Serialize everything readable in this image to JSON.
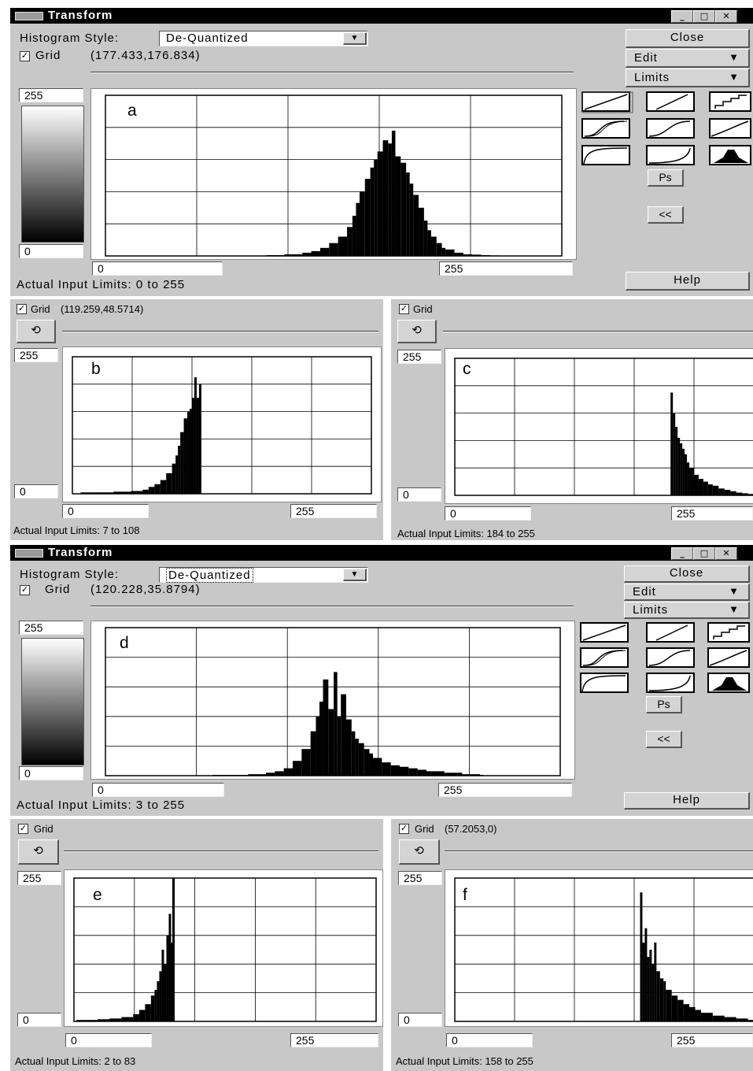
{
  "top_window": {
    "title": "Transform",
    "histogram_style_label": "Histogram Style:",
    "histogram_style_value": "De-Quantized",
    "grid_label": "Grid",
    "grid_checked": true,
    "cursor_readout": "(177.433,176.834)",
    "close_label": "Close",
    "edit_label": "Edit",
    "limits_label": "Limits",
    "ps_label": "Ps",
    "back_label": "<<",
    "help_label": "Help",
    "output_max": "255",
    "output_min": "0",
    "input_min": "0",
    "input_max": "255",
    "panel_letter": "a",
    "actual_limits": "Actual Input Limits: 0 to 255"
  },
  "panel_b": {
    "grid_label": "Grid",
    "cursor_readout": "(119.259,48.5714)",
    "output_max": "255",
    "output_min": "0",
    "input_min": "0",
    "input_max": "255",
    "panel_letter": "b",
    "actual_limits": "Actual Input Limits: 7 to 108"
  },
  "panel_c": {
    "grid_label": "Grid",
    "cursor_readout": "",
    "output_max": "255",
    "output_min": "0",
    "input_min": "0",
    "input_max": "255",
    "panel_letter": "c",
    "actual_limits": "Actual Input Limits: 184 to 255"
  },
  "bottom_window": {
    "title": "Transform",
    "histogram_style_label": "Histogram Style:",
    "histogram_style_value": "De-Quantized",
    "grid_label": "Grid",
    "grid_checked": true,
    "cursor_readout": "(120.228,35.8794)",
    "close_label": "Close",
    "edit_label": "Edit",
    "limits_label": "Limits",
    "ps_label": "Ps",
    "back_label": "<<",
    "help_label": "Help",
    "output_max": "255",
    "output_min": "0",
    "input_min": "0",
    "input_max": "255",
    "panel_letter": "d",
    "actual_limits": "Actual Input Limits: 3 to 255"
  },
  "panel_e": {
    "grid_label": "Grid",
    "cursor_readout": "",
    "output_max": "255",
    "output_min": "0",
    "input_min": "0",
    "input_max": "255",
    "panel_letter": "e",
    "actual_limits": "Actual Input Limits: 2 to 83"
  },
  "panel_f": {
    "grid_label": "Grid",
    "cursor_readout": "(57.2053,0)",
    "output_max": "255",
    "output_min": "0",
    "input_min": "0",
    "input_max": "255",
    "panel_letter": "f",
    "actual_limits": "Actual Input Limits: 158 to 255"
  },
  "icons": {
    "curve_buttons": [
      "linear-curve-icon",
      "steep-linear-curve-icon",
      "staircase-curve-icon",
      "s-curve-double-icon",
      "s-curve-icon",
      "shallow-s-curve-icon",
      "log-curve-icon",
      "exp-curve-icon",
      "histogram-shape-icon"
    ],
    "refresh": "refresh-icon",
    "window_controls": [
      "minimize-icon",
      "maximize-icon",
      "close-icon"
    ]
  },
  "chart_data": [
    {
      "type": "bar",
      "panel": "a",
      "xlim": [
        0,
        255
      ],
      "ylim": [
        0,
        1
      ],
      "x": [
        90,
        100,
        110,
        115,
        120,
        125,
        130,
        135,
        138,
        140,
        142,
        145,
        148,
        150,
        152,
        155,
        158,
        160,
        162,
        165,
        168,
        170,
        172,
        175,
        178,
        180,
        182,
        185,
        188,
        190,
        195,
        200,
        205,
        210,
        215,
        220
      ],
      "values": [
        0.005,
        0.01,
        0.02,
        0.03,
        0.05,
        0.08,
        0.12,
        0.18,
        0.25,
        0.33,
        0.4,
        0.48,
        0.55,
        0.6,
        0.65,
        0.72,
        0.7,
        0.78,
        0.62,
        0.58,
        0.52,
        0.45,
        0.38,
        0.3,
        0.22,
        0.16,
        0.12,
        0.08,
        0.05,
        0.04,
        0.02,
        0.01,
        0.008,
        0.005,
        0.003,
        0.002
      ]
    },
    {
      "type": "bar",
      "panel": "b",
      "xlim": [
        0,
        255
      ],
      "ylim": [
        0,
        1
      ],
      "x": [
        7,
        20,
        35,
        50,
        60,
        65,
        70,
        75,
        80,
        85,
        88,
        90,
        92,
        95,
        98,
        100,
        102,
        104,
        106,
        108
      ],
      "values": [
        0.01,
        0.01,
        0.015,
        0.02,
        0.03,
        0.05,
        0.07,
        0.1,
        0.15,
        0.22,
        0.28,
        0.35,
        0.45,
        0.55,
        0.6,
        0.62,
        0.7,
        0.85,
        0.7,
        0.8
      ]
    },
    {
      "type": "bar",
      "panel": "c",
      "xlim": [
        0,
        255
      ],
      "ylim": [
        0,
        1
      ],
      "x": [
        184,
        186,
        188,
        190,
        192,
        194,
        196,
        198,
        200,
        204,
        208,
        212,
        216,
        220,
        225,
        230,
        235,
        240,
        245,
        250,
        255
      ],
      "values": [
        0.75,
        0.6,
        0.5,
        0.42,
        0.38,
        0.34,
        0.3,
        0.24,
        0.2,
        0.15,
        0.12,
        0.1,
        0.08,
        0.07,
        0.05,
        0.04,
        0.03,
        0.02,
        0.015,
        0.01,
        0.005
      ]
    },
    {
      "type": "bar",
      "panel": "d",
      "xlim": [
        0,
        255
      ],
      "ylim": [
        0,
        1
      ],
      "x": [
        60,
        80,
        90,
        95,
        100,
        105,
        110,
        115,
        118,
        120,
        122,
        125,
        128,
        130,
        132,
        135,
        138,
        140,
        142,
        145,
        148,
        150,
        155,
        160,
        165,
        170,
        175,
        180,
        190,
        200,
        210
      ],
      "values": [
        0.005,
        0.01,
        0.02,
        0.03,
        0.05,
        0.1,
        0.18,
        0.3,
        0.4,
        0.5,
        0.65,
        0.45,
        0.7,
        0.4,
        0.55,
        0.38,
        0.3,
        0.25,
        0.22,
        0.18,
        0.15,
        0.12,
        0.09,
        0.07,
        0.06,
        0.05,
        0.04,
        0.03,
        0.02,
        0.01,
        0.005
      ]
    },
    {
      "type": "bar",
      "panel": "e",
      "xlim": [
        0,
        255
      ],
      "ylim": [
        0,
        1
      ],
      "x": [
        2,
        10,
        20,
        30,
        40,
        50,
        55,
        60,
        65,
        68,
        70,
        72,
        74,
        76,
        78,
        80,
        82,
        83
      ],
      "values": [
        0.01,
        0.01,
        0.015,
        0.02,
        0.03,
        0.05,
        0.08,
        0.12,
        0.18,
        0.22,
        0.28,
        0.35,
        0.5,
        0.4,
        0.6,
        0.75,
        0.55,
        1.0
      ]
    },
    {
      "type": "bar",
      "panel": "f",
      "xlim": [
        0,
        255
      ],
      "ylim": [
        0,
        1
      ],
      "x": [
        158,
        160,
        162,
        164,
        166,
        168,
        170,
        172,
        175,
        178,
        180,
        185,
        190,
        195,
        200,
        205,
        210,
        220,
        230,
        240,
        250,
        255
      ],
      "values": [
        0.9,
        0.55,
        0.65,
        0.45,
        0.5,
        0.4,
        0.55,
        0.35,
        0.3,
        0.28,
        0.22,
        0.18,
        0.15,
        0.12,
        0.1,
        0.08,
        0.06,
        0.04,
        0.03,
        0.02,
        0.01,
        0.005
      ]
    }
  ]
}
